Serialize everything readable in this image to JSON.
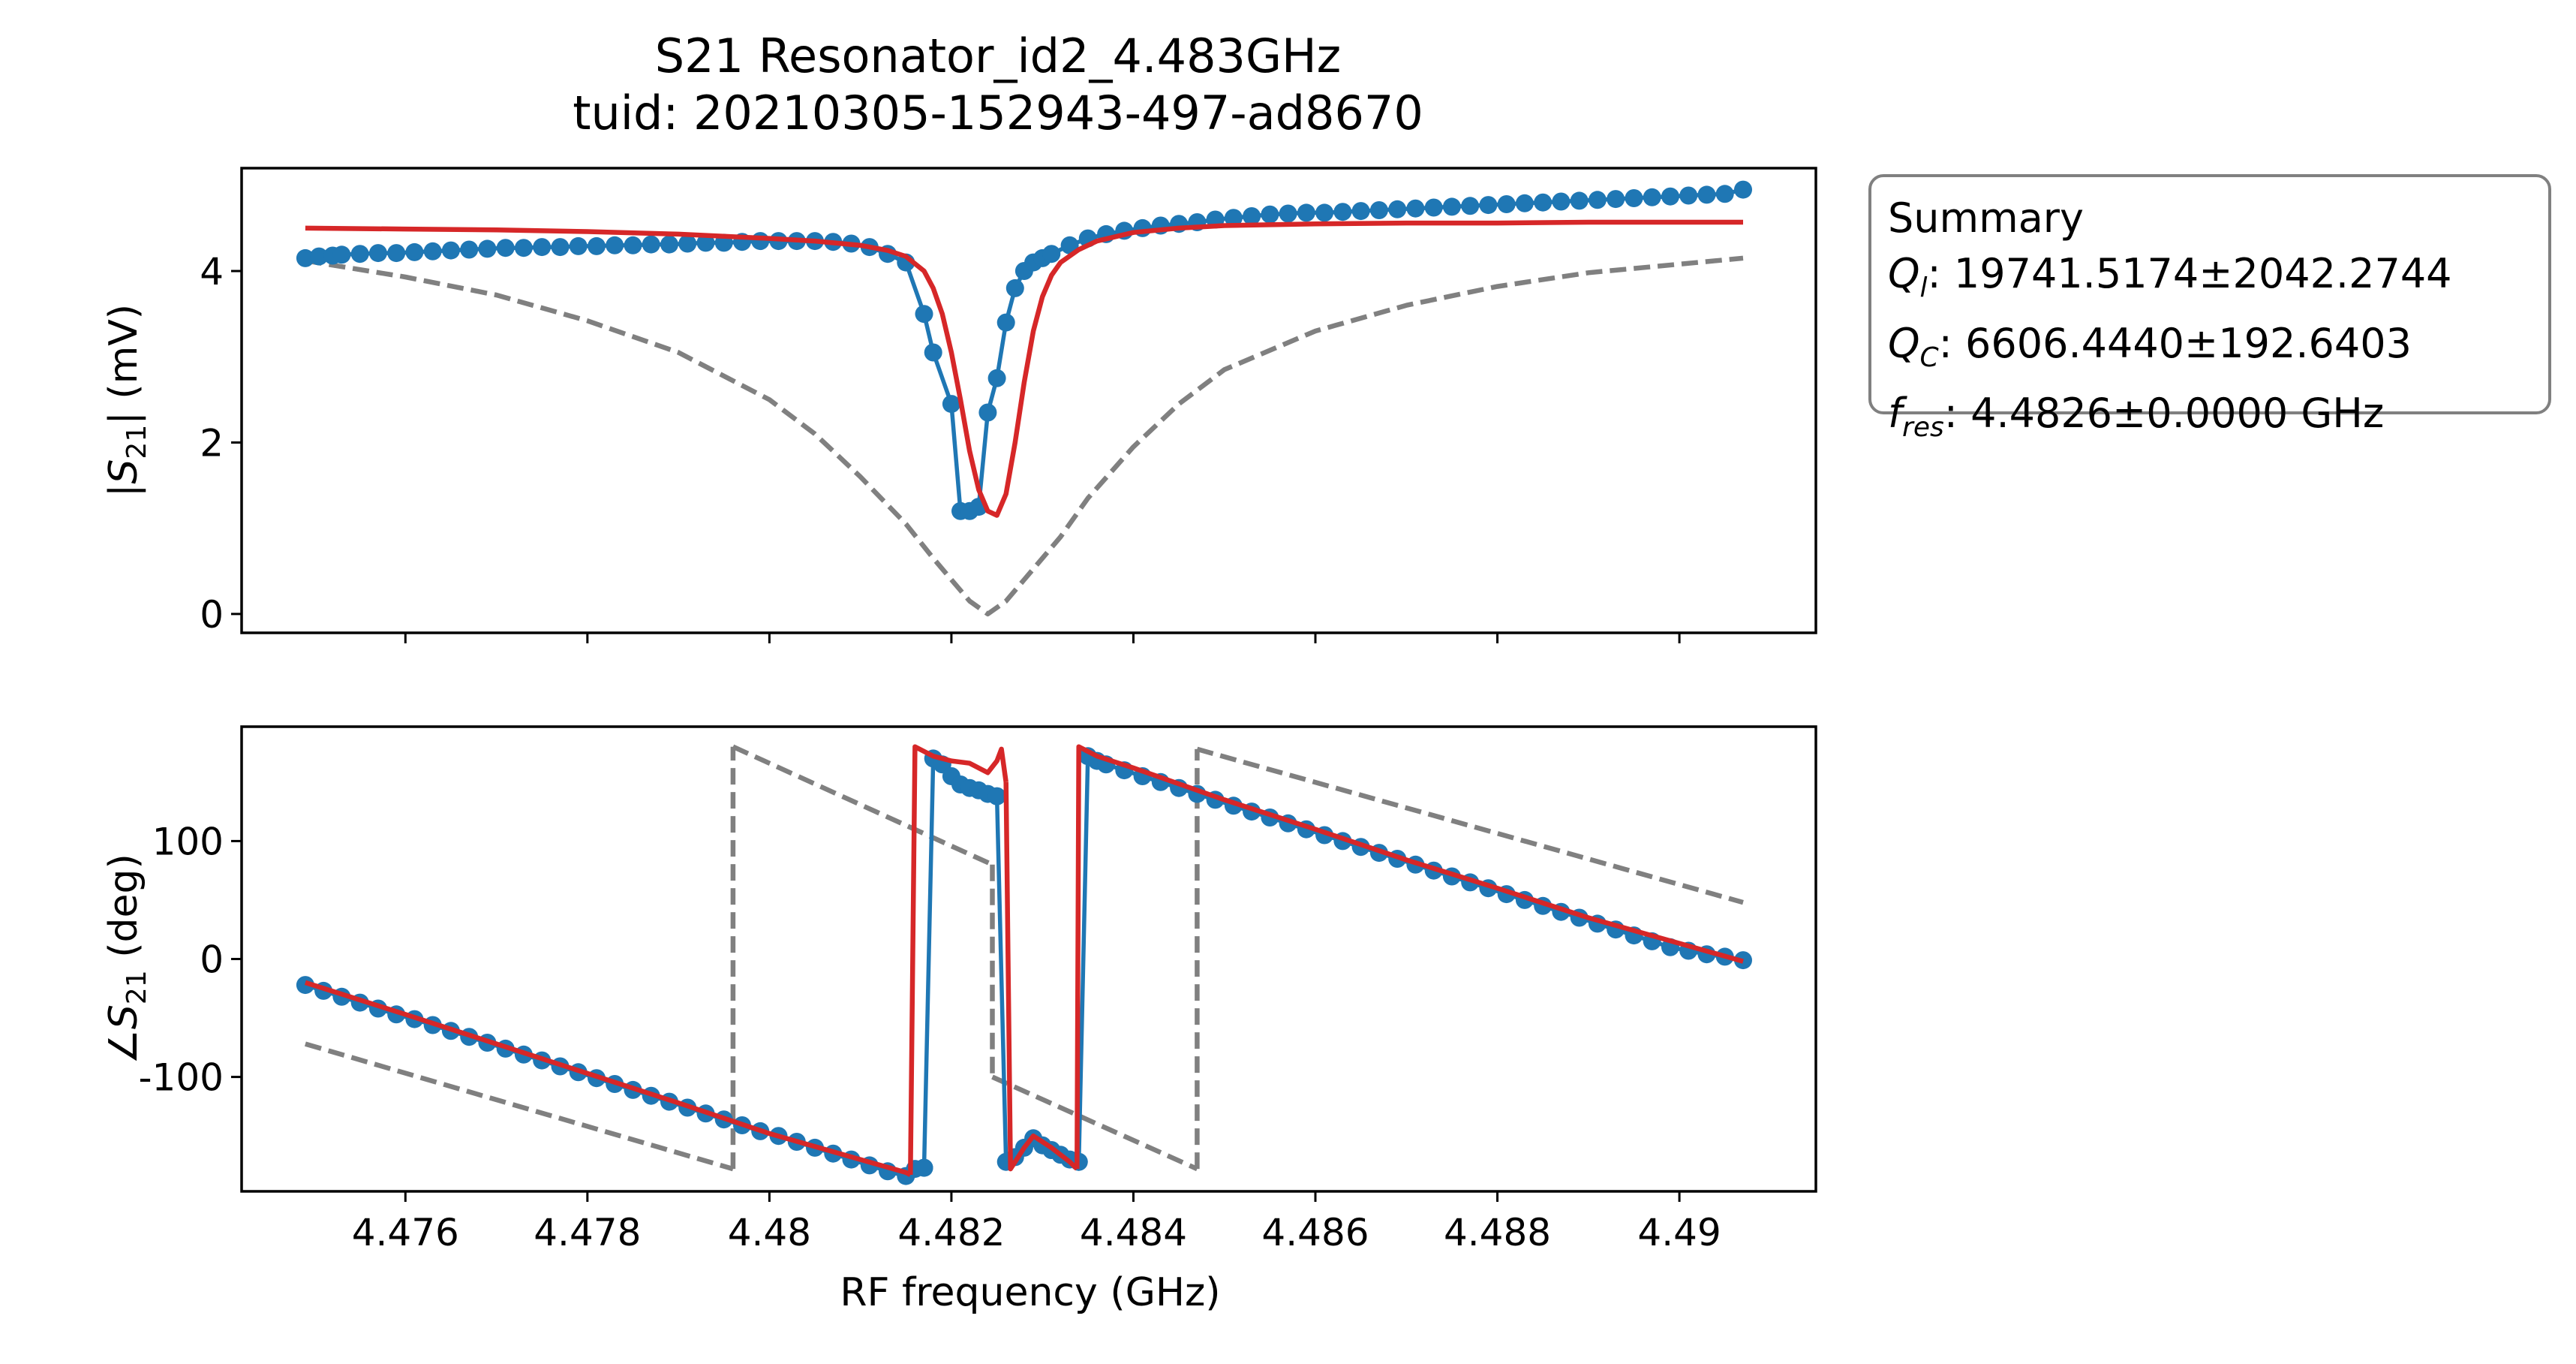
{
  "chart_data": [
    {
      "type": "line",
      "title_lines": [
        "S21 Resonator_id2_4.483GHz",
        "tuid: 20210305-152943-497-ad8670"
      ],
      "ylabel_parts": {
        "pre": "|",
        "sym": "S",
        "sub": "21",
        "post": "| (mV)"
      },
      "xlim": [
        4.4742,
        4.4915
      ],
      "ylim": [
        -0.22,
        5.2
      ],
      "yticks": [
        0,
        2,
        4
      ],
      "ytick_labels": [
        "0",
        "2",
        "4"
      ],
      "xticks": [
        4.476,
        4.478,
        4.48,
        4.482,
        4.484,
        4.486,
        4.488,
        4.49
      ],
      "show_xtick_labels": false,
      "grid": false,
      "series": [
        {
          "kind": "data",
          "color": "#1f77b4",
          "x": [
            4.4749,
            4.47505,
            4.4752,
            4.4753,
            4.4755,
            4.4757,
            4.4759,
            4.4761,
            4.4763,
            4.4765,
            4.4767,
            4.4769,
            4.4771,
            4.4773,
            4.4775,
            4.4777,
            4.4779,
            4.4781,
            4.4783,
            4.4785,
            4.4787,
            4.4789,
            4.4791,
            4.4793,
            4.4795,
            4.4797,
            4.4799,
            4.4801,
            4.4803,
            4.4805,
            4.4807,
            4.4809,
            4.4811,
            4.4813,
            4.4815,
            4.4817,
            4.4818,
            4.482,
            4.4821,
            4.4822,
            4.4823,
            4.4824,
            4.4825,
            4.4826,
            4.4827,
            4.4828,
            4.4829,
            4.483,
            4.4831,
            4.4833,
            4.4835,
            4.4837,
            4.4839,
            4.4841,
            4.4843,
            4.4845,
            4.4847,
            4.4849,
            4.4851,
            4.4853,
            4.4855,
            4.4857,
            4.4859,
            4.4861,
            4.4863,
            4.4865,
            4.4867,
            4.4869,
            4.4871,
            4.4873,
            4.4875,
            4.4877,
            4.4879,
            4.4881,
            4.4883,
            4.4885,
            4.4887,
            4.4889,
            4.4891,
            4.4893,
            4.4895,
            4.4897,
            4.4899,
            4.4901,
            4.4903,
            4.4905,
            4.4907
          ],
          "y": [
            4.15,
            4.17,
            4.18,
            4.19,
            4.2,
            4.21,
            4.21,
            4.22,
            4.23,
            4.24,
            4.25,
            4.26,
            4.27,
            4.27,
            4.28,
            4.28,
            4.29,
            4.29,
            4.3,
            4.3,
            4.31,
            4.31,
            4.32,
            4.33,
            4.33,
            4.34,
            4.35,
            4.35,
            4.35,
            4.35,
            4.34,
            4.32,
            4.28,
            4.2,
            4.1,
            3.5,
            3.05,
            2.45,
            1.2,
            1.2,
            1.25,
            2.35,
            2.75,
            3.4,
            3.8,
            4.0,
            4.1,
            4.15,
            4.2,
            4.3,
            4.38,
            4.43,
            4.47,
            4.5,
            4.53,
            4.55,
            4.57,
            4.6,
            4.62,
            4.64,
            4.66,
            4.67,
            4.68,
            4.68,
            4.69,
            4.7,
            4.71,
            4.72,
            4.73,
            4.74,
            4.75,
            4.76,
            4.77,
            4.78,
            4.79,
            4.8,
            4.81,
            4.82,
            4.83,
            4.84,
            4.85,
            4.86,
            4.87,
            4.88,
            4.89,
            4.9,
            4.95
          ]
        },
        {
          "kind": "fit",
          "color": "#d62728",
          "x": [
            4.4749,
            4.476,
            4.477,
            4.478,
            4.479,
            4.48,
            4.4805,
            4.481,
            4.4813,
            4.4815,
            4.4817,
            4.4818,
            4.4819,
            4.482,
            4.4821,
            4.4822,
            4.4823,
            4.4824,
            4.4825,
            4.4826,
            4.4827,
            4.4828,
            4.4829,
            4.483,
            4.4831,
            4.4832,
            4.4834,
            4.4836,
            4.484,
            4.4845,
            4.485,
            4.486,
            4.487,
            4.488,
            4.489,
            4.4907
          ],
          "y": [
            4.5,
            4.49,
            4.48,
            4.46,
            4.43,
            4.38,
            4.35,
            4.3,
            4.24,
            4.17,
            4.0,
            3.8,
            3.5,
            3.05,
            2.5,
            1.9,
            1.45,
            1.2,
            1.15,
            1.4,
            2.0,
            2.7,
            3.3,
            3.7,
            3.95,
            4.1,
            4.25,
            4.35,
            4.45,
            4.5,
            4.53,
            4.55,
            4.56,
            4.56,
            4.57,
            4.57
          ]
        },
        {
          "kind": "guess",
          "color": "#808080",
          "dashed": true,
          "x": [
            4.4749,
            4.476,
            4.477,
            4.478,
            4.479,
            4.48,
            4.4805,
            4.481,
            4.4815,
            4.4818,
            4.482,
            4.4822,
            4.4824,
            4.4826,
            4.4828,
            4.483,
            4.4832,
            4.4835,
            4.484,
            4.4845,
            4.485,
            4.486,
            4.487,
            4.488,
            4.489,
            4.4907
          ],
          "y": [
            4.12,
            3.93,
            3.72,
            3.42,
            3.05,
            2.5,
            2.1,
            1.6,
            1.05,
            0.65,
            0.4,
            0.15,
            0.0,
            0.15,
            0.4,
            0.65,
            0.9,
            1.35,
            1.95,
            2.45,
            2.85,
            3.3,
            3.6,
            3.82,
            3.98,
            4.15
          ]
        }
      ]
    },
    {
      "type": "line",
      "ylabel_parts": {
        "pre": "∠",
        "sym": "S",
        "sub": "21",
        "post": " (deg)"
      },
      "xlabel": "RF frequency (GHz)",
      "xlim": [
        4.4742,
        4.4915
      ],
      "ylim": [
        -197,
        197
      ],
      "yticks": [
        -100,
        0,
        100
      ],
      "ytick_labels": [
        "-100",
        "0",
        "100"
      ],
      "xticks": [
        4.476,
        4.478,
        4.48,
        4.482,
        4.484,
        4.486,
        4.488,
        4.49
      ],
      "xtick_labels": [
        "4.476",
        "4.478",
        "4.48",
        "4.482",
        "4.484",
        "4.486",
        "4.488",
        "4.49"
      ],
      "grid": false,
      "series": [
        {
          "kind": "data",
          "color": "#1f77b4",
          "segments": [
            {
              "x": [
                4.4749,
                4.4751,
                4.4753,
                4.4755,
                4.4757,
                4.4759,
                4.4761,
                4.4763,
                4.4765,
                4.4767,
                4.4769,
                4.4771,
                4.4773,
                4.4775,
                4.4777,
                4.4779,
                4.4781,
                4.4783,
                4.4785,
                4.4787,
                4.4789,
                4.4791,
                4.4793,
                4.4795,
                4.4797,
                4.4799,
                4.4801,
                4.4803,
                4.4805,
                4.4807,
                4.4809,
                4.4811,
                4.4813,
                4.4815,
                4.4816,
                4.4817
              ],
              "y": [
                -22,
                -27,
                -32,
                -37,
                -42,
                -47,
                -51,
                -56,
                -61,
                -66,
                -71,
                -76,
                -81,
                -86,
                -91,
                -96,
                -101,
                -106,
                -111,
                -116,
                -121,
                -126,
                -131,
                -136,
                -141,
                -146,
                -150,
                -155,
                -160,
                -165,
                -170,
                -175,
                -180,
                -184,
                -178,
                -177
              ]
            },
            {
              "x": [
                4.4817,
                4.4818,
                4.4819,
                4.482,
                4.4821,
                4.4822,
                4.4823,
                4.4824,
                4.4825
              ],
              "y": [
                -177,
                170,
                165,
                155,
                148,
                145,
                143,
                140,
                138
              ]
            },
            {
              "x": [
                4.4825,
                4.4826,
                4.4827,
                4.4828,
                4.4829,
                4.483,
                4.4831,
                4.4832,
                4.4833,
                4.4834
              ],
              "y": [
                138,
                -172,
                -168,
                -160,
                -152,
                -158,
                -162,
                -166,
                -170,
                -172
              ]
            },
            {
              "x": [
                4.4834,
                4.4835,
                4.4836,
                4.4837,
                4.4839,
                4.4841,
                4.4843,
                4.4845,
                4.4847,
                4.4849,
                4.4851,
                4.4853,
                4.4855,
                4.4857,
                4.4859,
                4.4861,
                4.4863,
                4.4865,
                4.4867,
                4.4869,
                4.4871,
                4.4873,
                4.4875,
                4.4877,
                4.4879,
                4.4881,
                4.4883,
                4.4885,
                4.4887,
                4.4889,
                4.4891,
                4.4893,
                4.4895,
                4.4897,
                4.4899,
                4.4901,
                4.4903,
                4.4905,
                4.4907
              ],
              "y": [
                -172,
                172,
                168,
                165,
                160,
                155,
                150,
                145,
                140,
                135,
                130,
                125,
                120,
                115,
                110,
                105,
                100,
                95,
                90,
                85,
                80,
                75,
                70,
                65,
                60,
                55,
                50,
                45,
                40,
                35,
                30,
                25,
                20,
                15,
                10,
                7,
                4,
                2,
                -1
              ]
            }
          ]
        },
        {
          "kind": "fit",
          "color": "#d62728",
          "segments": [
            {
              "x": [
                4.4749,
                4.476,
                4.477,
                4.478,
                4.479,
                4.48,
                4.481,
                4.4815,
                4.48155
              ],
              "y": [
                -20,
                -47,
                -72,
                -97,
                -122,
                -148,
                -170,
                -181,
                -183
              ]
            },
            {
              "x": [
                4.48155,
                4.4816,
                4.4818,
                4.482,
                4.4822,
                4.4823,
                4.4824,
                4.4825,
                4.48255,
                4.4826
              ],
              "y": [
                -183,
                180,
                172,
                168,
                166,
                162,
                158,
                168,
                178,
                150
              ]
            },
            {
              "x": [
                4.4826,
                4.48265,
                4.4827,
                4.4828,
                4.4829,
                4.483,
                4.4831,
                4.4832,
                4.4833,
                4.48338
              ],
              "y": [
                150,
                -178,
                -172,
                -160,
                -150,
                -155,
                -160,
                -166,
                -172,
                -178
              ]
            },
            {
              "x": [
                4.48338,
                4.4834,
                4.4836,
                4.484,
                4.485,
                4.486,
                4.487,
                4.488,
                4.489,
                4.4907
              ],
              "y": [
                -178,
                180,
                172,
                162,
                135,
                110,
                84,
                60,
                35,
                -2
              ]
            }
          ]
        },
        {
          "kind": "guess",
          "color": "#808080",
          "dashed": true,
          "segments": [
            {
              "x": [
                4.4749,
                4.4796
              ],
              "y": [
                -72,
                -178
              ]
            },
            {
              "x": [
                4.4796,
                4.4796
              ],
              "y": [
                -178,
                180
              ]
            },
            {
              "x": [
                4.4796,
                4.48245
              ],
              "y": [
                180,
                80
              ]
            },
            {
              "x": [
                4.48245,
                4.48245
              ],
              "y": [
                80,
                -100
              ]
            },
            {
              "x": [
                4.48245,
                4.4847
              ],
              "y": [
                -100,
                -178
              ]
            },
            {
              "x": [
                4.4847,
                4.4847
              ],
              "y": [
                -178,
                178
              ]
            },
            {
              "x": [
                4.4847,
                4.4907
              ],
              "y": [
                178,
                48
              ]
            }
          ]
        }
      ]
    }
  ],
  "summary": {
    "title": "Summary",
    "rows": [
      {
        "sym": "Q",
        "sub": "l",
        "value": ": 19741.5174±2042.2744"
      },
      {
        "sym": "Q",
        "sub": "C",
        "value": ": 6606.4440±192.6403"
      },
      {
        "sym": "f",
        "sub": "res",
        "value": ": 4.4826±0.0000 GHz"
      }
    ]
  }
}
